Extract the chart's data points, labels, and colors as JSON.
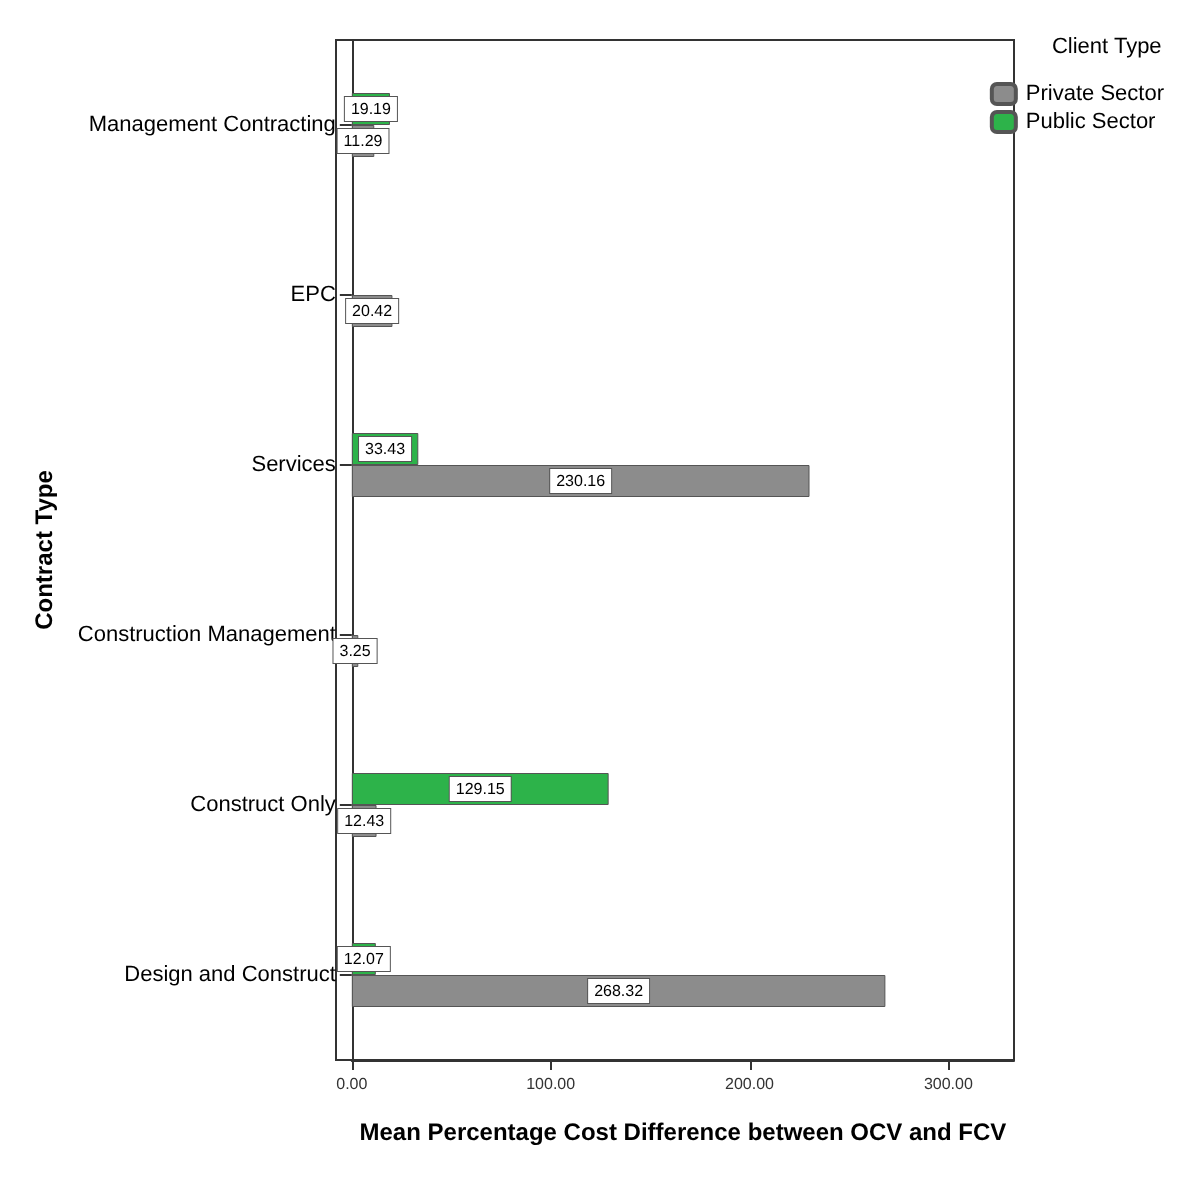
{
  "chart_data": {
    "type": "bar",
    "orientation": "horizontal",
    "xlabel": "Mean Percentage Cost Difference between OCV and FCV",
    "ylabel": "Contract Type",
    "legend_title": "Client Type",
    "legend": "top right",
    "grid": false,
    "data_labels": true,
    "categories": [
      "Management Contracting",
      "EPC",
      "Services",
      "Construction Management",
      "Construct Only",
      "Design and Construct"
    ],
    "xlim": [
      0,
      333
    ],
    "xticks": [
      {
        "value": 0,
        "label": "0.00"
      },
      {
        "value": 100,
        "label": "100.00"
      },
      {
        "value": 200,
        "label": "200.00"
      },
      {
        "value": 300,
        "label": "300.00"
      }
    ],
    "series": [
      {
        "name": "Private Sector",
        "color": "#8c8c8c",
        "values": [
          11.29,
          20.42,
          230.16,
          3.25,
          12.43,
          268.32
        ]
      },
      {
        "name": "Public Sector",
        "color": "#2db34a",
        "values": [
          19.19,
          null,
          33.43,
          null,
          129.15,
          12.07
        ]
      }
    ]
  }
}
